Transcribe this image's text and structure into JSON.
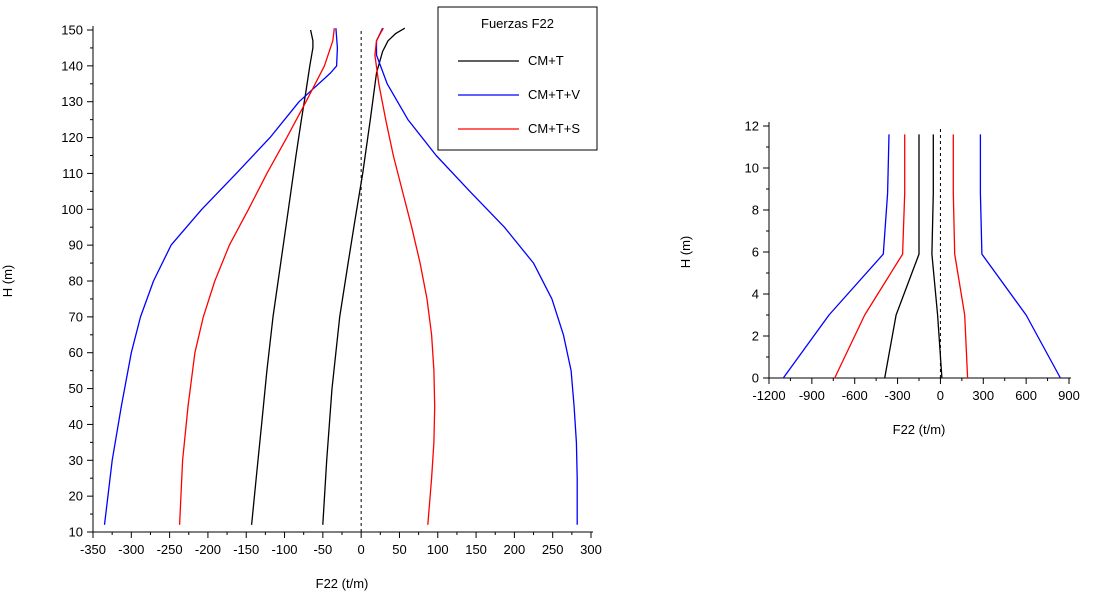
{
  "chart_data": [
    {
      "type": "line",
      "title": "",
      "xlabel": "F22 (t/m)",
      "ylabel": "H (m)",
      "xlim": [
        -350,
        300
      ],
      "ylim": [
        10,
        150
      ],
      "x_ticks": [
        -350,
        -300,
        -250,
        -200,
        -150,
        -100,
        -50,
        0,
        50,
        100,
        150,
        200,
        250,
        300
      ],
      "y_ticks": [
        10,
        20,
        30,
        40,
        50,
        60,
        70,
        80,
        90,
        100,
        110,
        120,
        130,
        140,
        150
      ],
      "zero_line": true,
      "grid": false,
      "legend": {
        "title": "Fuerzas F22",
        "placement": "top-right"
      },
      "series": [
        {
          "name": "CM+T",
          "color": "#000000",
          "points": [
            [
              -143,
              12
            ],
            [
              -137,
              25
            ],
            [
              -130,
              40
            ],
            [
              -123,
              55
            ],
            [
              -115,
              70
            ],
            [
              -105,
              85
            ],
            [
              -95,
              100
            ],
            [
              -85,
              115
            ],
            [
              -78,
              125
            ],
            [
              -72,
              133
            ],
            [
              -67,
              140
            ],
            [
              -63,
              145
            ],
            [
              -63,
              147
            ],
            [
              -66,
              150
            ]
          ]
        },
        {
          "name": "CM+T",
          "color": "#000000",
          "points": [
            [
              -50,
              12
            ],
            [
              -45,
              30
            ],
            [
              -38,
              50
            ],
            [
              -28,
              70
            ],
            [
              -17,
              85
            ],
            [
              -8,
              97
            ],
            [
              2,
              110
            ],
            [
              12,
              125
            ],
            [
              20,
              138
            ],
            [
              28,
              144
            ],
            [
              35,
              147
            ],
            [
              45,
              149
            ],
            [
              57,
              150.5
            ]
          ]
        },
        {
          "name": "CM+T+V",
          "color": "#0000ff",
          "points": [
            [
              -335,
              12
            ],
            [
              -325,
              30
            ],
            [
              -313,
              45
            ],
            [
              -300,
              60
            ],
            [
              -288,
              70
            ],
            [
              -271,
              80
            ],
            [
              -248,
              90
            ],
            [
              -208,
              100
            ],
            [
              -163,
              110
            ],
            [
              -119,
              120
            ],
            [
              -81,
              130
            ],
            [
              -40,
              138
            ],
            [
              -32,
              140
            ],
            [
              -31,
              145
            ],
            [
              -33,
              150.5
            ]
          ]
        },
        {
          "name": "CM+T+V",
          "color": "#0000ff",
          "points": [
            [
              282,
              12
            ],
            [
              282,
              25
            ],
            [
              281,
              35
            ],
            [
              278,
              45
            ],
            [
              274,
              55
            ],
            [
              264,
              65
            ],
            [
              249,
              75
            ],
            [
              225,
              85
            ],
            [
              187,
              95
            ],
            [
              142,
              105
            ],
            [
              98,
              115
            ],
            [
              61,
              125
            ],
            [
              34,
              135
            ],
            [
              20,
              143
            ],
            [
              20,
              147
            ],
            [
              28,
              150.5
            ]
          ]
        },
        {
          "name": "CM+T+S",
          "color": "#ff0000",
          "points": [
            [
              -237,
              12
            ],
            [
              -233,
              30
            ],
            [
              -226,
              45
            ],
            [
              -217,
              60
            ],
            [
              -206,
              70
            ],
            [
              -191,
              80
            ],
            [
              -172,
              90
            ],
            [
              -147,
              100
            ],
            [
              -123,
              110
            ],
            [
              -97,
              120
            ],
            [
              -72,
              130
            ],
            [
              -48,
              140
            ],
            [
              -37,
              147
            ],
            [
              -35,
              150.5
            ]
          ]
        },
        {
          "name": "CM+T+S",
          "color": "#ff0000",
          "points": [
            [
              87,
              12
            ],
            [
              92,
              25
            ],
            [
              95,
              35
            ],
            [
              96,
              45
            ],
            [
              95,
              55
            ],
            [
              92,
              65
            ],
            [
              86,
              75
            ],
            [
              77,
              85
            ],
            [
              66,
              95
            ],
            [
              54,
              105
            ],
            [
              42,
              115
            ],
            [
              32,
              125
            ],
            [
              23,
              135
            ],
            [
              18,
              143
            ],
            [
              20,
              147
            ],
            [
              25,
              149
            ],
            [
              29,
              150.5
            ]
          ]
        }
      ]
    },
    {
      "type": "line",
      "title": "",
      "xlabel": "F22 (t/m)",
      "ylabel": "H (m)",
      "xlim": [
        -1200,
        900
      ],
      "ylim": [
        0,
        12
      ],
      "x_ticks": [
        -1200,
        -900,
        -600,
        -300,
        0,
        300,
        600,
        900
      ],
      "y_ticks": [
        0,
        2,
        4,
        6,
        8,
        10,
        12
      ],
      "zero_line": true,
      "grid": false,
      "series": [
        {
          "color": "#0000ff",
          "points": [
            [
              -1100,
              0
            ],
            [
              -780,
              3
            ],
            [
              -400,
              5.9
            ],
            [
              -370,
              8.8
            ],
            [
              -360,
              11.6
            ]
          ]
        },
        {
          "color": "#0000ff",
          "points": [
            [
              840,
              0
            ],
            [
              600,
              3
            ],
            [
              290,
              5.9
            ],
            [
              280,
              8.8
            ],
            [
              280,
              11.6
            ]
          ]
        },
        {
          "color": "#ff0000",
          "points": [
            [
              -740,
              0
            ],
            [
              -530,
              3
            ],
            [
              -265,
              5.9
            ],
            [
              -250,
              8.8
            ],
            [
              -250,
              11.6
            ]
          ]
        },
        {
          "color": "#ff0000",
          "points": [
            [
              190,
              0
            ],
            [
              170,
              3
            ],
            [
              100,
              5.9
            ],
            [
              90,
              8.8
            ],
            [
              90,
              11.6
            ]
          ]
        },
        {
          "color": "#000000",
          "points": [
            [
              -390,
              0
            ],
            [
              -310,
              3
            ],
            [
              -150,
              5.9
            ],
            [
              -150,
              8.8
            ],
            [
              -150,
              11.6
            ]
          ]
        },
        {
          "color": "#000000",
          "points": [
            [
              10,
              0
            ],
            [
              -20,
              3
            ],
            [
              -60,
              5.9
            ],
            [
              -50,
              8.8
            ],
            [
              -50,
              11.6
            ]
          ]
        }
      ]
    }
  ]
}
